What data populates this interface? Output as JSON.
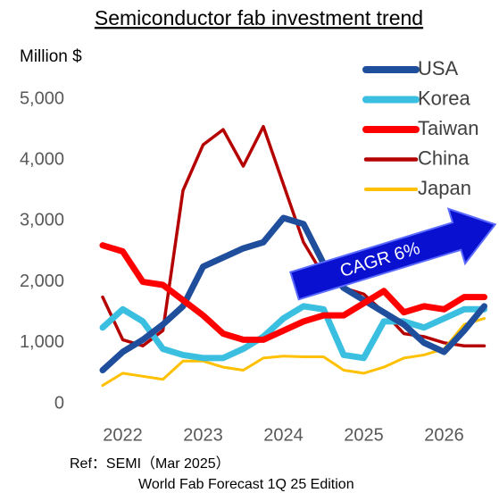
{
  "chart_data": {
    "type": "line",
    "title": "Semiconductor fab investment trend",
    "y_label": "Million $",
    "categories": [
      null,
      "2022",
      null,
      null,
      null,
      "2023",
      null,
      null,
      null,
      "2024",
      null,
      null,
      null,
      "2025",
      null,
      null,
      null,
      "2026",
      null,
      null
    ],
    "series": [
      {
        "name": "USA",
        "color": "#1f4e9c",
        "values": [
          550,
          850,
          1050,
          1300,
          1600,
          2250,
          2400,
          2550,
          2650,
          3050,
          2950,
          2300,
          1900,
          1700,
          1500,
          1300,
          1000,
          850,
          1200,
          1600
        ]
      },
      {
        "name": "Korea",
        "color": "#3bbfe0",
        "values": [
          1250,
          1550,
          1350,
          900,
          800,
          750,
          750,
          900,
          1100,
          1400,
          1600,
          1550,
          800,
          750,
          1350,
          1350,
          1250,
          1400,
          1550,
          1550
        ]
      },
      {
        "name": "Taiwan",
        "color": "#ff0000",
        "values": [
          2600,
          2500,
          2000,
          1950,
          1700,
          1450,
          1150,
          1050,
          1050,
          1200,
          1350,
          1450,
          1450,
          1650,
          1850,
          1500,
          1600,
          1550,
          1750,
          1750
        ]
      },
      {
        "name": "China",
        "color": "#b50000",
        "values": [
          1750,
          1050,
          950,
          1200,
          3500,
          4250,
          4500,
          3900,
          4550,
          3600,
          2650,
          2100,
          1900,
          1800,
          1500,
          1150,
          1100,
          1000,
          950,
          950
        ]
      },
      {
        "name": "Japan",
        "color": "#ffc000",
        "values": [
          300,
          500,
          450,
          400,
          700,
          700,
          600,
          550,
          750,
          780,
          770,
          770,
          550,
          500,
          600,
          750,
          800,
          900,
          1300,
          1400
        ]
      }
    ],
    "ylim": [
      0,
      5000
    ],
    "yticks": [
      0,
      {
        "value": 1000,
        "label": "1,000"
      },
      {
        "value": 2000,
        "label": "2,000"
      },
      {
        "value": 3000,
        "label": "3,000"
      },
      {
        "value": 4000,
        "label": "4,000"
      },
      {
        "value": 5000,
        "label": "5,000"
      }
    ],
    "grid": false,
    "legend": "upper right",
    "annotation": "CAGR  6%",
    "source": [
      "Ref：SEMI（Mar 2025）",
      "World Fab Forecast 1Q 25 Edition"
    ]
  }
}
